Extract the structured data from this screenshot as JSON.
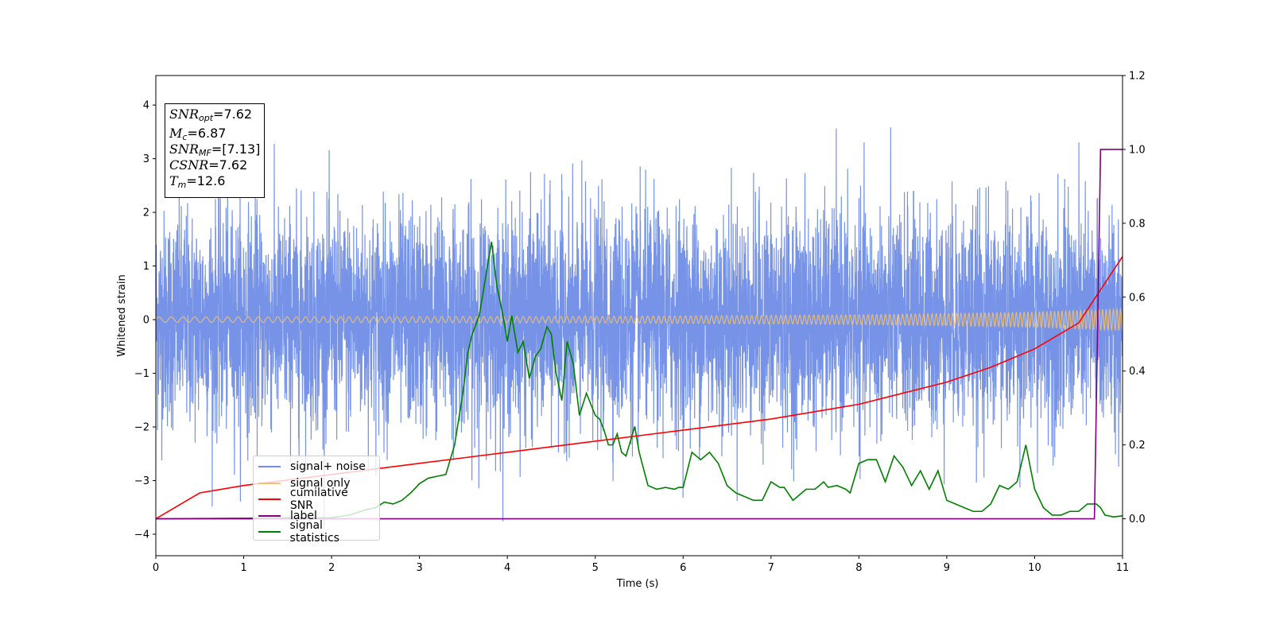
{
  "colors": {
    "noise": "#6f8de6",
    "signal": "#f5c170",
    "snr": "#ff0000",
    "label": "#800080",
    "stat": "#008000"
  },
  "info_box": {
    "snr_opt_main": "SNR",
    "snr_opt_sub": "opt",
    "snr_opt_val": "=7.62",
    "mc_main": "M",
    "mc_sub": "c",
    "mc_val": "=6.87",
    "snr_mf_main": "SNR",
    "snr_mf_sub": "MF",
    "snr_mf_val": "=[7.13]",
    "csnr_main": "CSNR",
    "csnr_val": "=7.62",
    "tm_main": "T",
    "tm_sub": "m",
    "tm_val": "=12.6"
  },
  "chart_data": {
    "type": "line",
    "title": "",
    "xlabel": "Time (s)",
    "ylabel": "Whitened strain",
    "xlim": [
      0,
      11
    ],
    "ylim_left": [
      -4.4,
      4.55
    ],
    "ylim_right": [
      -0.1,
      1.2
    ],
    "x_ticks": [
      "0",
      "1",
      "2",
      "3",
      "4",
      "5",
      "6",
      "7",
      "8",
      "9",
      "10",
      "11"
    ],
    "y_ticks_left": [
      "−4",
      "−3",
      "−2",
      "−1",
      "0",
      "1",
      "2",
      "3",
      "4"
    ],
    "y_ticks_right": [
      "0.0",
      "0.2",
      "0.4",
      "0.6",
      "0.8",
      "1.0",
      "1.2"
    ],
    "legend_position": "lower-left",
    "series": [
      {
        "name": "signal+ noise",
        "axis": "left",
        "style": "dense noise, approx. ±2.5 with spikes to ±4.2",
        "envelope": {
          "x": [
            0,
            11
          ],
          "y_min": [
            -3.9,
            -3.9
          ],
          "y_max": [
            4.17,
            4.17
          ]
        }
      },
      {
        "name": "signal only",
        "axis": "left",
        "style": "chirp oscillation",
        "amplitude": {
          "x": [
            0,
            5,
            8,
            10,
            11
          ],
          "y": [
            0.05,
            0.06,
            0.09,
            0.14,
            0.2
          ]
        }
      },
      {
        "name": "cumilative SNR",
        "axis": "right",
        "x": [
          0,
          0.5,
          1,
          1.5,
          2,
          2.5,
          3,
          3.5,
          4,
          4.5,
          5,
          5.5,
          6,
          6.5,
          7,
          7.5,
          8,
          8.5,
          9,
          9.5,
          10,
          10.5,
          11
        ],
        "y": [
          0.0,
          0.07,
          0.09,
          0.105,
          0.12,
          0.135,
          0.15,
          0.165,
          0.18,
          0.195,
          0.21,
          0.225,
          0.24,
          0.255,
          0.27,
          0.29,
          0.31,
          0.34,
          0.37,
          0.41,
          0.46,
          0.53,
          0.71
        ]
      },
      {
        "name": "label",
        "axis": "right",
        "x": [
          0,
          10.68,
          10.75,
          11
        ],
        "y": [
          0.0,
          0.0,
          1.0,
          1.0
        ]
      },
      {
        "name": "signal statistics",
        "axis": "right",
        "x": [
          0,
          2.0,
          2.2,
          2.4,
          2.5,
          2.6,
          2.7,
          2.8,
          2.9,
          3.0,
          3.1,
          3.2,
          3.3,
          3.4,
          3.5,
          3.55,
          3.6,
          3.68,
          3.75,
          3.82,
          3.88,
          3.95,
          4.0,
          4.05,
          4.12,
          4.18,
          4.25,
          4.32,
          4.38,
          4.45,
          4.5,
          4.55,
          4.62,
          4.68,
          4.75,
          4.82,
          4.9,
          5.0,
          5.05,
          5.1,
          5.15,
          5.2,
          5.25,
          5.3,
          5.35,
          5.45,
          5.5,
          5.6,
          5.7,
          5.8,
          5.9,
          5.95,
          6.0,
          6.1,
          6.2,
          6.3,
          6.4,
          6.5,
          6.6,
          6.7,
          6.8,
          6.9,
          7.0,
          7.1,
          7.15,
          7.25,
          7.35,
          7.4,
          7.5,
          7.6,
          7.65,
          7.75,
          7.85,
          7.9,
          8.0,
          8.1,
          8.2,
          8.3,
          8.4,
          8.5,
          8.6,
          8.7,
          8.8,
          8.9,
          9.0,
          9.1,
          9.2,
          9.3,
          9.4,
          9.5,
          9.6,
          9.7,
          9.8,
          9.9,
          10.0,
          10.1,
          10.2,
          10.3,
          10.4,
          10.5,
          10.6,
          10.7,
          10.75,
          10.8,
          10.9,
          11.0
        ],
        "y": [
          0.0,
          0.003,
          0.01,
          0.025,
          0.03,
          0.045,
          0.04,
          0.05,
          0.07,
          0.095,
          0.11,
          0.115,
          0.12,
          0.2,
          0.35,
          0.45,
          0.5,
          0.55,
          0.65,
          0.75,
          0.63,
          0.55,
          0.48,
          0.55,
          0.45,
          0.48,
          0.38,
          0.44,
          0.46,
          0.52,
          0.5,
          0.4,
          0.32,
          0.48,
          0.42,
          0.28,
          0.34,
          0.28,
          0.27,
          0.24,
          0.2,
          0.2,
          0.23,
          0.18,
          0.17,
          0.25,
          0.18,
          0.09,
          0.08,
          0.085,
          0.08,
          0.085,
          0.085,
          0.18,
          0.16,
          0.18,
          0.15,
          0.09,
          0.07,
          0.06,
          0.05,
          0.05,
          0.1,
          0.085,
          0.085,
          0.05,
          0.07,
          0.08,
          0.08,
          0.1,
          0.085,
          0.09,
          0.08,
          0.07,
          0.15,
          0.16,
          0.16,
          0.1,
          0.17,
          0.14,
          0.09,
          0.13,
          0.08,
          0.13,
          0.05,
          0.04,
          0.03,
          0.02,
          0.02,
          0.04,
          0.09,
          0.08,
          0.1,
          0.2,
          0.08,
          0.03,
          0.01,
          0.01,
          0.02,
          0.02,
          0.04,
          0.04,
          0.03,
          0.01,
          0.005,
          0.008
        ]
      }
    ]
  }
}
